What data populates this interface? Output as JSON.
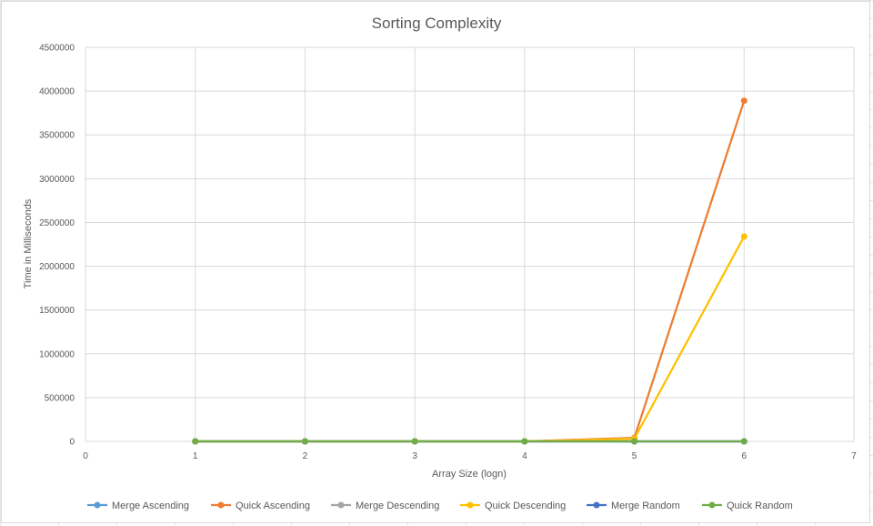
{
  "chart_data": {
    "type": "scatter",
    "title": "Sorting Complexity",
    "xlabel": "Array Size (logn)",
    "ylabel": "Time in Milliseconds",
    "xlim": [
      0,
      7
    ],
    "ylim": [
      0,
      4500000
    ],
    "x_ticks": [
      0,
      1,
      2,
      3,
      4,
      5,
      6,
      7
    ],
    "y_ticks": [
      0,
      500000,
      1000000,
      1500000,
      2000000,
      2500000,
      3000000,
      3500000,
      4000000,
      4500000
    ],
    "grid": true,
    "legend_position": "bottom",
    "x": [
      1,
      2,
      3,
      4,
      5,
      6
    ],
    "series": [
      {
        "name": "Merge Ascending",
        "color": "#5b9bd5",
        "values": [
          0,
          0,
          0,
          0,
          0,
          0
        ]
      },
      {
        "name": "Quick Ascending",
        "color": "#ed7d31",
        "values": [
          0,
          0,
          0,
          0,
          40000,
          3890000
        ]
      },
      {
        "name": "Merge Descending",
        "color": "#a5a5a5",
        "values": [
          0,
          0,
          0,
          0,
          0,
          0
        ]
      },
      {
        "name": "Quick Descending",
        "color": "#ffc000",
        "values": [
          0,
          0,
          0,
          0,
          30000,
          2340000
        ]
      },
      {
        "name": "Merge Random",
        "color": "#4472c4",
        "values": [
          0,
          0,
          0,
          0,
          0,
          0
        ]
      },
      {
        "name": "Quick Random",
        "color": "#70ad47",
        "values": [
          0,
          0,
          0,
          0,
          0,
          0
        ]
      }
    ]
  }
}
